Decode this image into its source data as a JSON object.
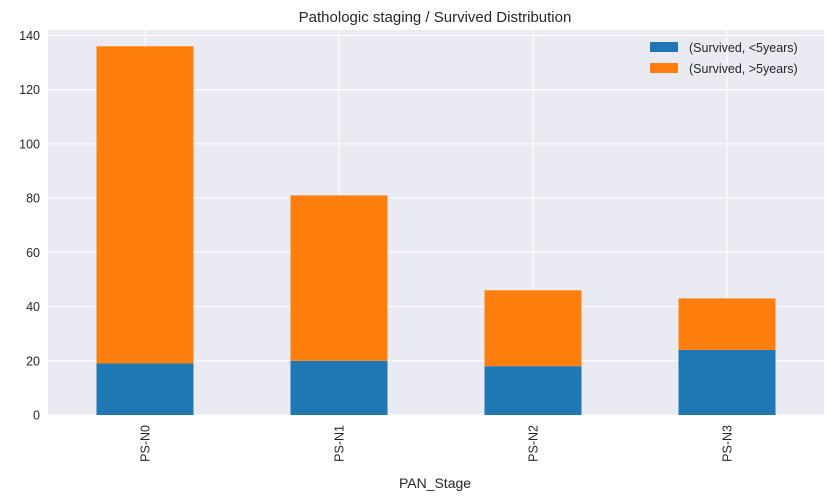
{
  "chart_data": {
    "type": "bar",
    "stacked": true,
    "title": "Pathologic staging / Survived Distribution",
    "xlabel": "PAN_Stage",
    "ylabel": "",
    "categories": [
      "PS-N0",
      "PS-N1",
      "PS-N2",
      "PS-N3"
    ],
    "series": [
      {
        "name": "(Survived, <5years)",
        "color": "#1f77b4",
        "values": [
          19,
          20,
          18,
          24
        ]
      },
      {
        "name": "(Survived, >5years)",
        "color": "#ff7f0e",
        "values": [
          117,
          61,
          28,
          19
        ]
      }
    ],
    "ylim": [
      0,
      142
    ],
    "yticks": [
      0,
      20,
      40,
      60,
      80,
      100,
      120,
      140
    ],
    "grid": true,
    "legend_position": "top-right",
    "background_color": "#eaeaf2",
    "grid_color": "#ffffff"
  }
}
